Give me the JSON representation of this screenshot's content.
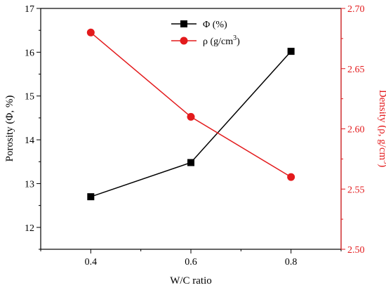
{
  "chart_data": {
    "type": "line",
    "xlabel": "W/C ratio",
    "ylabel_left": "Porosity (Φ, %)",
    "ylabel_right": {
      "text": "Density (ρ, g/cm",
      "sup": "3",
      "close": ")"
    },
    "x": [
      0.4,
      0.6,
      0.8
    ],
    "x_ticks": [
      "0.4",
      "0.6",
      "0.8"
    ],
    "xlim": [
      0.3,
      0.9
    ],
    "ylim_left": [
      11.5,
      17
    ],
    "ylim_right": [
      2.5,
      2.7
    ],
    "y_ticks_left": [
      "12",
      "13",
      "14",
      "15",
      "16",
      "17"
    ],
    "y_ticks_right": [
      "2.50",
      "2.55",
      "2.60",
      "2.65",
      "2.70"
    ],
    "legend_position": "top-center",
    "series": [
      {
        "name": "Φ (%)",
        "axis": "left",
        "marker": "square",
        "color": "#000000",
        "values": [
          12.7,
          13.48,
          16.02
        ]
      },
      {
        "name": {
          "text": "ρ (g/cm",
          "sup": "3",
          "close": ")"
        },
        "axis": "right",
        "marker": "circle",
        "color": "#e31a1c",
        "values": [
          2.68,
          2.61,
          2.56
        ]
      }
    ]
  }
}
